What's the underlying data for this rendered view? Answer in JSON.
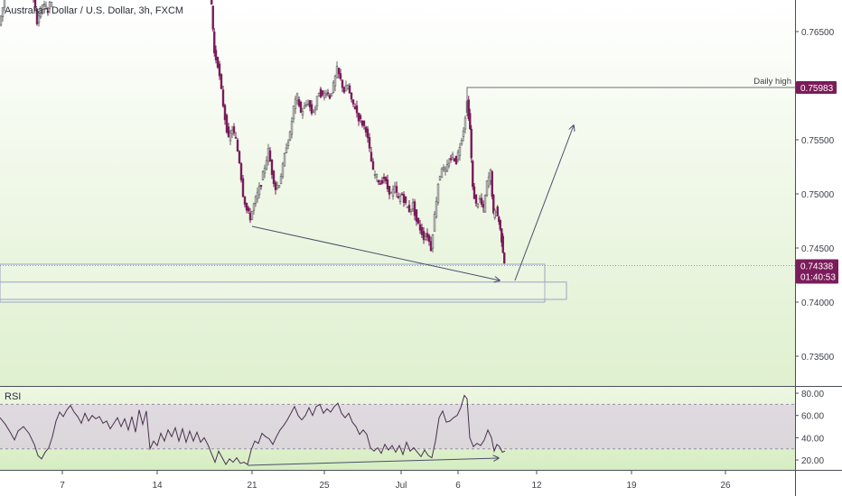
{
  "chart_data": {
    "type": "candlestick",
    "title": "Australian Dollar / U.S. Dollar, 3h, FXCM",
    "price_axis": {
      "ticks": [
        0.765,
        0.755,
        0.75,
        0.745,
        0.74,
        0.735
      ],
      "tick_labels": [
        "0.76500",
        "0.75500",
        "0.75000",
        "0.74500",
        "0.74000",
        "0.73500"
      ]
    },
    "time_axis": {
      "ticks": [
        "7",
        "14",
        "21",
        "25",
        "Jul",
        "6",
        "12",
        "19",
        "26"
      ]
    },
    "last_price": {
      "value": 0.74338,
      "label": "0.74338",
      "countdown": "01:40:53",
      "color": "#7b1c5a"
    },
    "daily_high": {
      "label": "Daily high",
      "value": 0.75983,
      "value_label": "0.75983",
      "color": "#7b1c5a"
    },
    "candles_close_path": [
      [
        0,
        0.7656
      ],
      [
        6,
        0.768
      ],
      [
        12,
        0.769
      ],
      [
        18,
        0.77
      ],
      [
        24,
        0.7705
      ],
      [
        30,
        0.77
      ],
      [
        36,
        0.769
      ],
      [
        42,
        0.766
      ],
      [
        48,
        0.7675
      ],
      [
        54,
        0.767
      ],
      [
        60,
        0.7685
      ],
      [
        66,
        0.769
      ],
      [
        72,
        0.77
      ],
      [
        78,
        0.771
      ],
      [
        84,
        0.772
      ],
      [
        90,
        0.7725
      ],
      [
        96,
        0.773
      ],
      [
        102,
        0.7735
      ],
      [
        108,
        0.7745
      ],
      [
        114,
        0.775
      ],
      [
        120,
        0.775
      ],
      [
        126,
        0.7755
      ],
      [
        132,
        0.776
      ],
      [
        138,
        0.7765
      ],
      [
        144,
        0.777
      ],
      [
        150,
        0.7775
      ],
      [
        156,
        0.778
      ],
      [
        162,
        0.778
      ],
      [
        168,
        0.7785
      ],
      [
        174,
        0.779
      ],
      [
        180,
        0.779
      ],
      [
        186,
        0.7785
      ],
      [
        192,
        0.7785
      ],
      [
        198,
        0.7775
      ],
      [
        204,
        0.777
      ],
      [
        210,
        0.7765
      ],
      [
        216,
        0.776
      ],
      [
        222,
        0.7755
      ],
      [
        228,
        0.775
      ],
      [
        232,
        0.7725
      ],
      [
        235,
        0.7675
      ],
      [
        238,
        0.763
      ],
      [
        242,
        0.762
      ],
      [
        246,
        0.7595
      ],
      [
        250,
        0.757
      ],
      [
        254,
        0.755
      ],
      [
        258,
        0.756
      ],
      [
        262,
        0.755
      ],
      [
        266,
        0.753
      ],
      [
        270,
        0.75
      ],
      [
        274,
        0.7485
      ],
      [
        278,
        0.7478
      ],
      [
        282,
        0.749
      ],
      [
        286,
        0.75
      ],
      [
        290,
        0.751
      ],
      [
        294,
        0.7525
      ],
      [
        298,
        0.754
      ],
      [
        302,
        0.752
      ],
      [
        306,
        0.7505
      ],
      [
        310,
        0.751
      ],
      [
        314,
        0.7525
      ],
      [
        318,
        0.7545
      ],
      [
        322,
        0.7555
      ],
      [
        326,
        0.758
      ],
      [
        330,
        0.759
      ],
      [
        334,
        0.7575
      ],
      [
        338,
        0.758
      ],
      [
        342,
        0.7585
      ],
      [
        346,
        0.7575
      ],
      [
        350,
        0.758
      ],
      [
        354,
        0.7595
      ],
      [
        358,
        0.759
      ],
      [
        362,
        0.7595
      ],
      [
        366,
        0.759
      ],
      [
        370,
        0.76
      ],
      [
        374,
        0.7615
      ],
      [
        378,
        0.7605
      ],
      [
        382,
        0.7595
      ],
      [
        386,
        0.76
      ],
      [
        390,
        0.7585
      ],
      [
        394,
        0.758
      ],
      [
        398,
        0.757
      ],
      [
        402,
        0.7565
      ],
      [
        406,
        0.756
      ],
      [
        410,
        0.754
      ],
      [
        414,
        0.752
      ],
      [
        418,
        0.7515
      ],
      [
        422,
        0.751
      ],
      [
        426,
        0.7515
      ],
      [
        430,
        0.7505
      ],
      [
        434,
        0.75
      ],
      [
        438,
        0.7505
      ],
      [
        442,
        0.7495
      ],
      [
        446,
        0.75
      ],
      [
        450,
        0.749
      ],
      [
        454,
        0.7485
      ],
      [
        458,
        0.749
      ],
      [
        462,
        0.7475
      ],
      [
        466,
        0.7468
      ],
      [
        470,
        0.746
      ],
      [
        474,
        0.7462
      ],
      [
        478,
        0.745
      ],
      [
        482,
        0.748
      ],
      [
        486,
        0.751
      ],
      [
        490,
        0.7525
      ],
      [
        494,
        0.752
      ],
      [
        498,
        0.753
      ],
      [
        502,
        0.7535
      ],
      [
        506,
        0.753
      ],
      [
        510,
        0.7545
      ],
      [
        514,
        0.756
      ],
      [
        518,
        0.7585
      ],
      [
        521,
        0.756
      ],
      [
        524,
        0.7505
      ],
      [
        528,
        0.749
      ],
      [
        532,
        0.7495
      ],
      [
        536,
        0.7485
      ],
      [
        540,
        0.751
      ],
      [
        544,
        0.752
      ],
      [
        547,
        0.748
      ],
      [
        550,
        0.7485
      ],
      [
        553,
        0.7475
      ],
      [
        556,
        0.7458
      ],
      [
        559,
        0.7438
      ]
    ],
    "supply_zones": [
      {
        "top": 0.7435,
        "bottom": 0.74
      },
      {
        "top": 0.74185,
        "bottom": 0.74025
      }
    ],
    "rsi": {
      "label": "RSI",
      "ticks": [
        80,
        60,
        40,
        20
      ],
      "tick_labels": [
        "80.00",
        "60.00",
        "40.00",
        "20.00"
      ],
      "band": [
        70,
        30
      ],
      "line_path": [
        [
          0,
          58
        ],
        [
          6,
          52
        ],
        [
          12,
          44
        ],
        [
          16,
          38
        ],
        [
          20,
          46
        ],
        [
          26,
          50
        ],
        [
          32,
          44
        ],
        [
          38,
          34
        ],
        [
          42,
          24
        ],
        [
          46,
          21
        ],
        [
          50,
          27
        ],
        [
          54,
          31
        ],
        [
          58,
          41
        ],
        [
          62,
          55
        ],
        [
          66,
          63
        ],
        [
          70,
          59
        ],
        [
          74,
          65
        ],
        [
          78,
          69
        ],
        [
          82,
          63
        ],
        [
          86,
          59
        ],
        [
          90,
          53
        ],
        [
          94,
          62
        ],
        [
          98,
          55
        ],
        [
          102,
          60
        ],
        [
          106,
          57
        ],
        [
          110,
          59
        ],
        [
          114,
          53
        ],
        [
          118,
          55
        ],
        [
          122,
          48
        ],
        [
          126,
          53
        ],
        [
          130,
          58
        ],
        [
          134,
          50
        ],
        [
          138,
          57
        ],
        [
          142,
          47
        ],
        [
          146,
          59
        ],
        [
          150,
          45
        ],
        [
          154,
          65
        ],
        [
          158,
          52
        ],
        [
          162,
          64
        ],
        [
          166,
          30
        ],
        [
          170,
          37
        ],
        [
          174,
          33
        ],
        [
          178,
          44
        ],
        [
          182,
          37
        ],
        [
          186,
          47
        ],
        [
          190,
          41
        ],
        [
          194,
          49
        ],
        [
          198,
          37
        ],
        [
          202,
          48
        ],
        [
          206,
          36
        ],
        [
          210,
          46
        ],
        [
          214,
          37
        ],
        [
          218,
          45
        ],
        [
          222,
          36
        ],
        [
          226,
          40
        ],
        [
          230,
          34
        ],
        [
          234,
          26
        ],
        [
          238,
          18
        ],
        [
          242,
          28
        ],
        [
          246,
          22
        ],
        [
          250,
          16
        ],
        [
          254,
          21
        ],
        [
          258,
          18
        ],
        [
          262,
          22
        ],
        [
          266,
          17
        ],
        [
          270,
          18
        ],
        [
          274,
          16
        ],
        [
          278,
          29
        ],
        [
          282,
          37
        ],
        [
          286,
          35
        ],
        [
          290,
          44
        ],
        [
          294,
          41
        ],
        [
          298,
          39
        ],
        [
          302,
          34
        ],
        [
          306,
          41
        ],
        [
          310,
          47
        ],
        [
          314,
          51
        ],
        [
          318,
          56
        ],
        [
          322,
          62
        ],
        [
          326,
          68
        ],
        [
          330,
          60
        ],
        [
          334,
          56
        ],
        [
          338,
          60
        ],
        [
          342,
          67
        ],
        [
          346,
          60
        ],
        [
          350,
          68
        ],
        [
          354,
          70
        ],
        [
          358,
          62
        ],
        [
          362,
          66
        ],
        [
          366,
          63
        ],
        [
          370,
          68
        ],
        [
          374,
          71
        ],
        [
          378,
          62
        ],
        [
          382,
          58
        ],
        [
          386,
          62
        ],
        [
          390,
          54
        ],
        [
          394,
          50
        ],
        [
          398,
          43
        ],
        [
          402,
          47
        ],
        [
          406,
          43
        ],
        [
          410,
          31
        ],
        [
          414,
          28
        ],
        [
          418,
          31
        ],
        [
          422,
          26
        ],
        [
          426,
          34
        ],
        [
          430,
          29
        ],
        [
          434,
          33
        ],
        [
          438,
          27
        ],
        [
          442,
          33
        ],
        [
          446,
          25
        ],
        [
          450,
          36
        ],
        [
          454,
          28
        ],
        [
          458,
          31
        ],
        [
          462,
          27
        ],
        [
          466,
          23
        ],
        [
          470,
          29
        ],
        [
          474,
          24
        ],
        [
          478,
          22
        ],
        [
          482,
          37
        ],
        [
          486,
          58
        ],
        [
          490,
          64
        ],
        [
          494,
          54
        ],
        [
          498,
          55
        ],
        [
          502,
          58
        ],
        [
          506,
          60
        ],
        [
          510,
          67
        ],
        [
          514,
          78
        ],
        [
          517,
          75
        ],
        [
          520,
          40
        ],
        [
          524,
          32
        ],
        [
          528,
          35
        ],
        [
          532,
          33
        ],
        [
          536,
          38
        ],
        [
          540,
          47
        ],
        [
          544,
          40
        ],
        [
          547,
          28
        ],
        [
          550,
          34
        ],
        [
          553,
          32
        ],
        [
          556,
          27
        ],
        [
          559,
          28
        ]
      ]
    }
  }
}
